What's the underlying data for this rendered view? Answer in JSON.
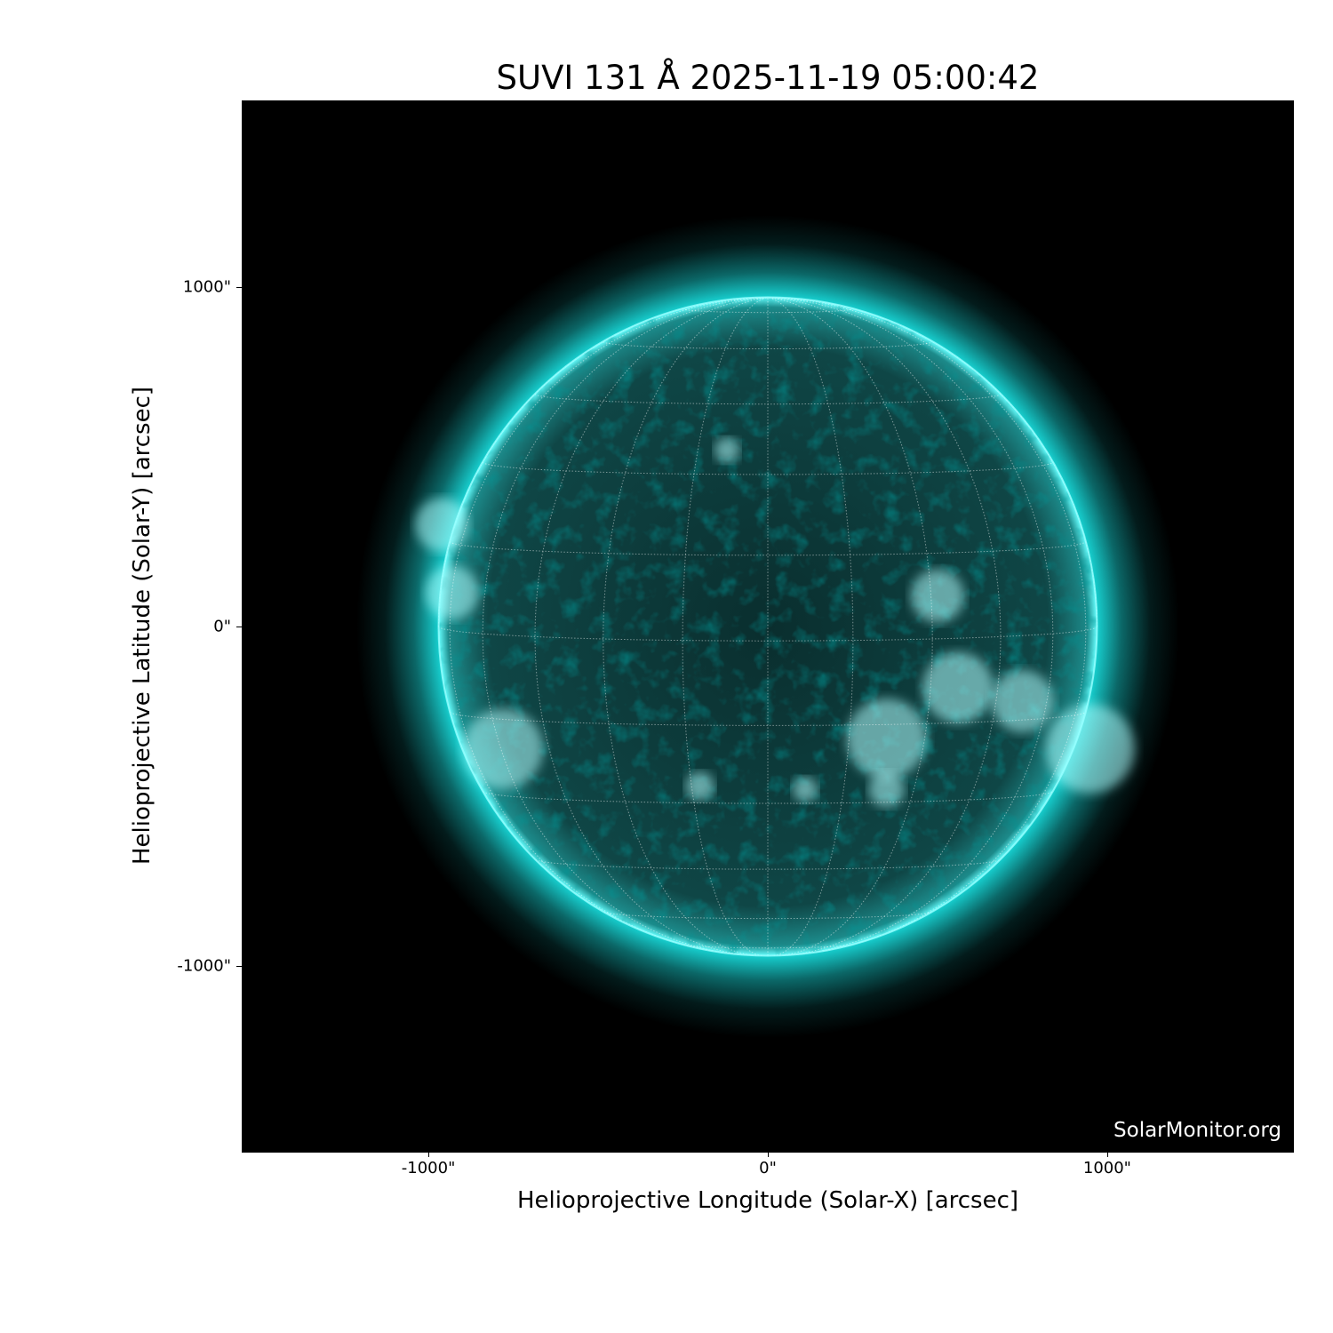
{
  "title": "SUVI 131 Å 2025-11-19 05:00:42",
  "watermark": "SolarMonitor.org",
  "colormap_color": "#19e6e6",
  "axes": {
    "xlabel": "Helioprojective Longitude (Solar-X) [arcsec]",
    "ylabel": "Helioprojective Latitude (Solar-Y) [arcsec]",
    "xticks": [
      "-1000\"",
      "0\"",
      "1000\""
    ],
    "yticks": [
      "1000\"",
      "0\"",
      "-1000\""
    ],
    "xtick_values": [
      -1000,
      0,
      1000
    ],
    "ytick_values": [
      1000,
      0,
      -1000
    ],
    "xlim": [
      -1550,
      1550
    ],
    "ylim": [
      -1550,
      1550
    ]
  },
  "solar_radius_arcsec": 970,
  "grid_spacing_deg": 15
}
